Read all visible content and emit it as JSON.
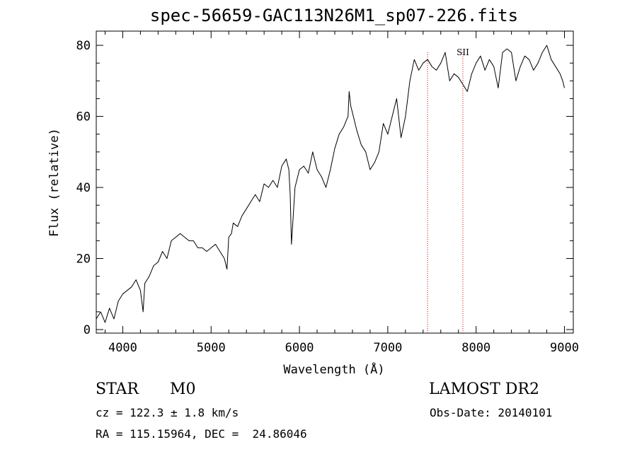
{
  "chart_data": {
    "type": "line",
    "title": "spec-56659-GAC113N26M1_sp07-226.fits",
    "xlabel": "Wavelength (Å)",
    "ylabel": "Flux (relative)",
    "xlim": [
      3700,
      9100
    ],
    "ylim": [
      -1,
      84
    ],
    "x_ticks": [
      4000,
      5000,
      6000,
      7000,
      8000,
      9000
    ],
    "y_ticks": [
      0,
      20,
      40,
      60,
      80
    ],
    "grid": false,
    "legend": "none",
    "line_color": "#000000",
    "marker_color": "#cc0000",
    "series": [
      {
        "x": [
          3700,
          3750,
          3800,
          3850,
          3900,
          3950,
          4000,
          4050,
          4100,
          4150,
          4200,
          4230,
          4250,
          4300,
          4350,
          4400,
          4450,
          4500,
          4550,
          4600,
          4650,
          4700,
          4750,
          4800,
          4850,
          4900,
          4950,
          5000,
          5050,
          5100,
          5150,
          5180,
          5200,
          5230,
          5250,
          5300,
          5350,
          5400,
          5450,
          5500,
          5550,
          5600,
          5650,
          5700,
          5750,
          5800,
          5850,
          5880,
          5895,
          5910,
          5950,
          6000,
          6050,
          6100,
          6150,
          6200,
          6250,
          6300,
          6350,
          6400,
          6450,
          6500,
          6550,
          6563,
          6580,
          6600,
          6650,
          6700,
          6750,
          6800,
          6850,
          6900,
          6950,
          7000,
          7050,
          7100,
          7150,
          7200,
          7250,
          7300,
          7350,
          7400,
          7450,
          7500,
          7550,
          7600,
          7650,
          7700,
          7750,
          7800,
          7850,
          7900,
          7950,
          8000,
          8050,
          8100,
          8150,
          8200,
          8250,
          8300,
          8350,
          8400,
          8450,
          8500,
          8550,
          8600,
          8650,
          8700,
          8750,
          8800,
          8850,
          8900,
          8950,
          8980,
          9000
        ],
        "y": [
          3,
          5,
          2,
          6,
          3,
          8,
          10,
          11,
          12,
          14,
          11,
          5,
          13,
          15,
          18,
          19,
          22,
          20,
          25,
          26,
          27,
          26,
          25,
          25,
          23,
          23,
          22,
          23,
          24,
          22,
          20,
          17,
          26,
          27,
          30,
          29,
          32,
          34,
          36,
          38,
          36,
          41,
          40,
          42,
          40,
          46,
          48,
          45,
          38,
          24,
          40,
          45,
          46,
          44,
          50,
          45,
          43,
          40,
          45,
          51,
          55,
          57,
          60,
          67,
          63,
          61,
          56,
          52,
          50,
          45,
          47,
          50,
          58,
          55,
          60,
          65,
          54,
          60,
          70,
          76,
          73,
          75,
          76,
          74,
          73,
          75,
          78,
          70,
          72,
          71,
          69,
          67,
          72,
          75,
          77,
          73,
          76,
          74,
          68,
          78,
          79,
          78,
          70,
          74,
          77,
          76,
          73,
          75,
          78,
          80,
          76,
          74,
          72,
          70,
          68
        ]
      }
    ],
    "markers": [
      {
        "x": 7450,
        "label": ""
      },
      {
        "x": 7850,
        "label": "SII"
      }
    ]
  },
  "info": {
    "object_class": "STAR",
    "subclass": "M0",
    "survey": "LAMOST DR2",
    "cz": "cz = 122.3 ± 1.8 km/s",
    "obs_date": "Obs-Date: 20140101",
    "radec": "RA = 115.15964, DEC =  24.86046"
  }
}
